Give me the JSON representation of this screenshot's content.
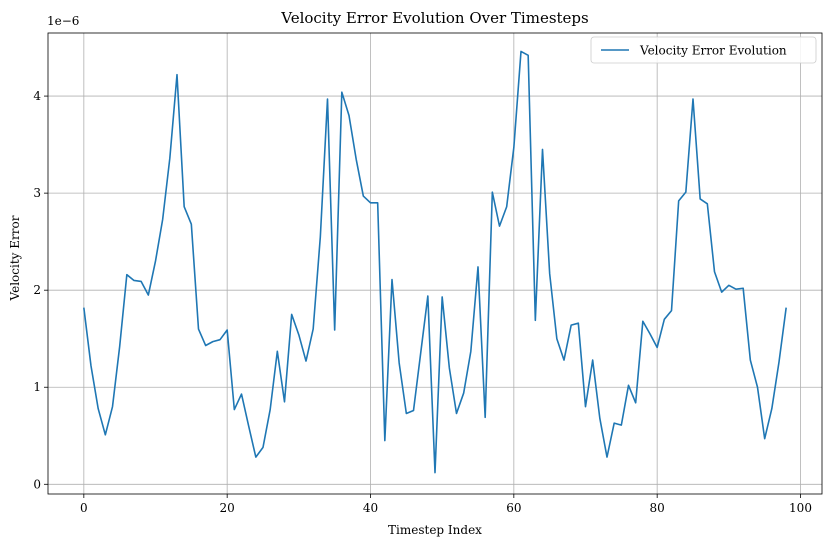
{
  "chart_data": {
    "type": "line",
    "title": "Velocity Error Evolution Over Timesteps",
    "xlabel": "Timestep Index",
    "ylabel": "Velocity Error",
    "y_offset_label": "1e−6",
    "y_multiplier": 1e-06,
    "xlim": [
      -5,
      103
    ],
    "ylim": [
      -0.1,
      4.65
    ],
    "xticks": [
      0,
      20,
      40,
      60,
      80,
      100
    ],
    "yticks": [
      0,
      1,
      2,
      3,
      4
    ],
    "grid": true,
    "legend_position": "top-right",
    "series": [
      {
        "name": "Velocity Error Evolution",
        "color": "#1f77b4",
        "x": [
          0,
          1,
          2,
          3,
          4,
          5,
          6,
          7,
          8,
          9,
          10,
          11,
          12,
          13,
          14,
          15,
          16,
          17,
          18,
          19,
          20,
          21,
          22,
          23,
          24,
          25,
          26,
          27,
          28,
          29,
          30,
          31,
          32,
          33,
          34,
          35,
          36,
          37,
          38,
          39,
          40,
          41,
          42,
          43,
          44,
          45,
          46,
          47,
          48,
          49,
          50,
          51,
          52,
          53,
          54,
          55,
          56,
          57,
          58,
          59,
          60,
          61,
          62,
          63,
          64,
          65,
          66,
          67,
          68,
          69,
          70,
          71,
          72,
          73,
          74,
          75,
          76,
          77,
          78,
          79,
          80,
          81,
          82,
          83,
          84,
          85,
          86,
          87,
          88,
          89,
          90,
          91,
          92,
          93,
          94,
          95,
          96,
          97,
          98
        ],
        "values": [
          1.82,
          1.22,
          0.78,
          0.51,
          0.8,
          1.42,
          2.16,
          2.1,
          2.09,
          1.95,
          2.3,
          2.73,
          3.36,
          4.22,
          2.86,
          2.68,
          1.6,
          1.43,
          1.47,
          1.49,
          1.59,
          0.77,
          0.93,
          0.6,
          0.28,
          0.38,
          0.77,
          1.37,
          0.85,
          1.75,
          1.54,
          1.27,
          1.6,
          2.55,
          3.97,
          1.59,
          4.04,
          3.8,
          3.35,
          2.97,
          2.9,
          2.9,
          0.45,
          2.11,
          1.25,
          0.73,
          0.76,
          1.35,
          1.94,
          0.12,
          1.93,
          1.2,
          0.73,
          0.94,
          1.37,
          2.24,
          0.69,
          3.01,
          2.66,
          2.86,
          3.47,
          4.46,
          4.42,
          1.69,
          3.45,
          2.17,
          1.5,
          1.28,
          1.64,
          1.66,
          0.8,
          1.28,
          0.68,
          0.28,
          0.63,
          0.61,
          1.02,
          0.84,
          1.68,
          1.55,
          1.41,
          1.7,
          1.79,
          2.92,
          3.01,
          3.97,
          2.94,
          2.89,
          2.19,
          1.98,
          2.05,
          2.01,
          2.02,
          1.28,
          1.0,
          0.47,
          0.78,
          1.26,
          1.82
        ]
      }
    ]
  }
}
